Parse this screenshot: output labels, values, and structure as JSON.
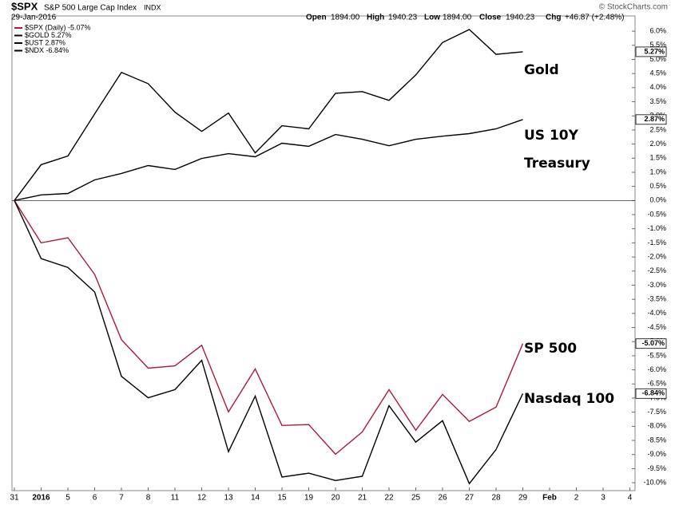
{
  "chart_data": {
    "type": "line",
    "header": {
      "symbol": "$SPX",
      "name": "S&P 500 Large Cap Index",
      "exchange": "INDX",
      "date": "29-Jan-2016",
      "open_label": "Open",
      "open": "1894.00",
      "high_label": "High",
      "high": "1940.23",
      "low_label": "Low",
      "low": "1894.00",
      "close_label": "Close",
      "close": "1940.23",
      "chg_label": "Chg",
      "chg": "+46.87 (+2.48%)",
      "credit": "© StockCharts.com"
    },
    "categories": [
      "31",
      "2016",
      "5",
      "6",
      "7",
      "8",
      "11",
      "12",
      "13",
      "14",
      "15",
      "19",
      "20",
      "21",
      "22",
      "25",
      "26",
      "27",
      "28",
      "29",
      "Feb",
      "2",
      "3",
      "4"
    ],
    "series": [
      {
        "name": "$SPX (Daily) -5.07%",
        "color": "#b0183a",
        "end_label": "-5.07%",
        "values": [
          0,
          -1.5,
          -1.32,
          -2.62,
          -4.93,
          -5.94,
          -5.86,
          -5.13,
          -7.49,
          -5.97,
          -7.97,
          -7.94,
          -8.99,
          -8.2,
          -6.7,
          -8.14,
          -6.87,
          -7.83,
          -7.32,
          -5.07,
          null,
          null,
          null,
          null
        ]
      },
      {
        "name": "$GOLD 5.27%",
        "color": "#000000",
        "end_label": "5.27%",
        "values": [
          0,
          1.27,
          1.58,
          3.07,
          4.54,
          4.14,
          3.13,
          2.45,
          3.1,
          1.69,
          2.65,
          2.54,
          3.8,
          3.86,
          3.55,
          4.45,
          5.6,
          6.06,
          5.18,
          5.27,
          null,
          null,
          null,
          null
        ]
      },
      {
        "name": "$UST 2.87%",
        "color": "#000000",
        "end_label": "2.87%",
        "values": [
          0,
          0.2,
          0.25,
          0.73,
          0.96,
          1.24,
          1.1,
          1.49,
          1.66,
          1.55,
          2.03,
          1.92,
          2.34,
          2.17,
          1.94,
          2.17,
          2.28,
          2.37,
          2.54,
          2.87,
          null,
          null,
          null,
          null
        ]
      },
      {
        "name": "$NDX -6.84%",
        "color": "#000000",
        "end_label": "-6.84%",
        "values": [
          0,
          -2.06,
          -2.37,
          -3.24,
          -6.23,
          -6.99,
          -6.7,
          -5.66,
          -8.9,
          -6.93,
          -9.8,
          -9.66,
          -9.92,
          -9.77,
          -7.27,
          -8.56,
          -7.8,
          -10.03,
          -8.82,
          -6.84,
          null,
          null,
          null,
          null
        ]
      }
    ],
    "annotations": [
      "Gold",
      "US 10Y",
      "Treasury",
      "SP 500",
      "Nasdaq 100"
    ],
    "ylim": [
      -10.28,
      6.54
    ],
    "yticks": [
      {
        "value": 6,
        "label": "6.0%"
      },
      {
        "value": 5.5,
        "label": "5.5%"
      },
      {
        "value": 5,
        "label": "5.0%"
      },
      {
        "value": 4.5,
        "label": "4.5%"
      },
      {
        "value": 4,
        "label": "4.0%"
      },
      {
        "value": 3.5,
        "label": "3.5%"
      },
      {
        "value": 3,
        "label": "3.0%"
      },
      {
        "value": 2.5,
        "label": "2.5%"
      },
      {
        "value": 2,
        "label": "2.0%"
      },
      {
        "value": 1.5,
        "label": "1.5%"
      },
      {
        "value": 1,
        "label": "1.0%"
      },
      {
        "value": 0.5,
        "label": "0.5%"
      },
      {
        "value": 0,
        "label": "0.0%"
      },
      {
        "value": -0.5,
        "label": "-0.5%"
      },
      {
        "value": -1,
        "label": "-1.0%"
      },
      {
        "value": -1.5,
        "label": "-1.5%"
      },
      {
        "value": -2,
        "label": "-2.0%"
      },
      {
        "value": -2.5,
        "label": "-2.5%"
      },
      {
        "value": -3,
        "label": "-3.0%"
      },
      {
        "value": -3.5,
        "label": "-3.5%"
      },
      {
        "value": -4,
        "label": "-4.0%"
      },
      {
        "value": -4.5,
        "label": "-4.5%"
      },
      {
        "value": -5,
        "label": "-5.0%"
      },
      {
        "value": -5.5,
        "label": "-5.5%"
      },
      {
        "value": -6,
        "label": "-6.0%"
      },
      {
        "value": -6.5,
        "label": "-6.5%"
      },
      {
        "value": -7,
        "label": "-7.0%"
      },
      {
        "value": -7.5,
        "label": "-7.5%"
      },
      {
        "value": -8,
        "label": "-8.0%"
      },
      {
        "value": -8.5,
        "label": "-8.5%"
      },
      {
        "value": -9,
        "label": "-9.0%"
      },
      {
        "value": -9.5,
        "label": "-9.5%"
      },
      {
        "value": -10,
        "label": "-10.0%"
      }
    ],
    "grid": false
  }
}
